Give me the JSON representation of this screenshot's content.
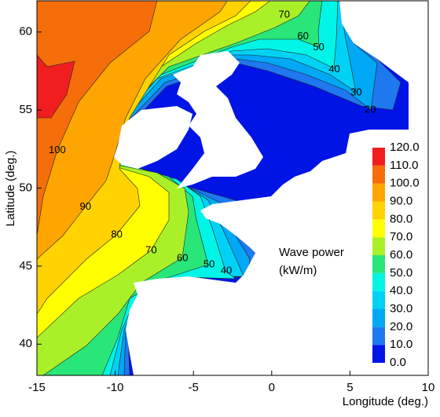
{
  "chart_data": {
    "type": "contour",
    "x_label": "Longitude (deg.)",
    "y_label": "Latitude (deg.)",
    "xlim": [
      -15,
      10
    ],
    "ylim": [
      38,
      62
    ],
    "xticks": [
      -15,
      -10,
      -5,
      0,
      5,
      10
    ],
    "yticks": [
      40,
      45,
      50,
      55,
      60
    ],
    "colorbar": {
      "title": [
        "Wave power",
        "(kW/m)"
      ],
      "levels": [
        {
          "value": 0,
          "label": "0.0"
        },
        {
          "value": 10,
          "label": "10.0"
        },
        {
          "value": 20,
          "label": "20.0"
        },
        {
          "value": 30,
          "label": "30.0"
        },
        {
          "value": 40,
          "label": "40.0"
        },
        {
          "value": 50,
          "label": "50.0"
        },
        {
          "value": 60,
          "label": "60.0"
        },
        {
          "value": 70,
          "label": "70.0"
        },
        {
          "value": 80,
          "label": "80.0"
        },
        {
          "value": 90,
          "label": "90.0"
        },
        {
          "value": 100,
          "label": "100.0"
        },
        {
          "value": 110,
          "label": "110.0"
        },
        {
          "value": 120,
          "label": "120.0"
        }
      ],
      "colors": [
        "#0014e6",
        "#1e78f0",
        "#00a8f5",
        "#00d2f5",
        "#00f5e6",
        "#28e678",
        "#aaf028",
        "#ffff00",
        "#ffd200",
        "#ffa500",
        "#f56e0a",
        "#f01e1e"
      ]
    },
    "contour_labels": [
      {
        "value": 70,
        "x": 0.8,
        "y": 61.1
      },
      {
        "value": 60,
        "x": 2.0,
        "y": 59.7
      },
      {
        "value": 50,
        "x": 3.0,
        "y": 59.0
      },
      {
        "value": 40,
        "x": 4.0,
        "y": 57.6
      },
      {
        "value": 30,
        "x": 5.4,
        "y": 56.1
      },
      {
        "value": 20,
        "x": 6.3,
        "y": 55.0
      },
      {
        "value": 100,
        "x": -13.7,
        "y": 52.4
      },
      {
        "value": 90,
        "x": -11.9,
        "y": 48.8
      },
      {
        "value": 80,
        "x": -9.9,
        "y": 47.0
      },
      {
        "value": 70,
        "x": -7.7,
        "y": 46.0
      },
      {
        "value": 60,
        "x": -5.7,
        "y": 45.5
      },
      {
        "value": 50,
        "x": -4.0,
        "y": 45.1
      },
      {
        "value": 40,
        "x": -2.9,
        "y": 44.7
      }
    ]
  }
}
